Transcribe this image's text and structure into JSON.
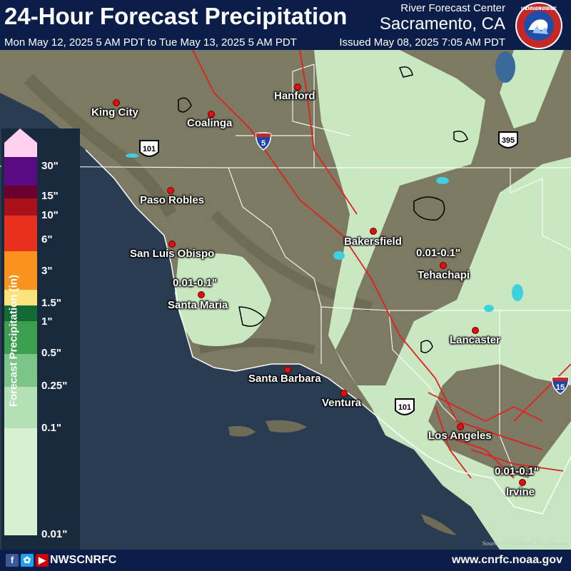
{
  "header": {
    "title": "24-Hour Forecast Precipitation",
    "valid_period": "Mon May 12, 2025 5 AM PDT to Tue May 13, 2025 5 AM PDT",
    "issued": "Issued May 08, 2025 7:05 AM PDT",
    "office_line1": "River Forecast Center",
    "office_line2": "Sacramento, CA",
    "logo_text": "NATIONAL WEATHER SERVICE"
  },
  "cities": [
    {
      "name": "Hanford"
    },
    {
      "name": "King City"
    },
    {
      "name": "Coalinga"
    },
    {
      "name": "Paso Robles"
    },
    {
      "name": "Bakersfield"
    },
    {
      "name": "San Luis Obispo"
    },
    {
      "name": "Tehachapi"
    },
    {
      "name": "Santa Maria"
    },
    {
      "name": "Lancaster"
    },
    {
      "name": "Santa Barbara"
    },
    {
      "name": "Ventura"
    },
    {
      "name": "Los Angeles"
    },
    {
      "name": "Irvine"
    }
  ],
  "highways": [
    {
      "number": "5",
      "type": "interstate"
    },
    {
      "number": "101",
      "type": "us"
    },
    {
      "number": "395",
      "type": "us"
    },
    {
      "number": "101",
      "type": "us"
    },
    {
      "number": "15",
      "type": "interstate"
    }
  ],
  "precip_annotations": [
    "0.01-0.1\"",
    "0.01-0.1\"",
    "0.01-0.1\""
  ],
  "legend": {
    "title": "Forecast Precipitation (in)",
    "labels": [
      "30\"",
      "15\"",
      "10\"",
      "6\"",
      "3\"",
      "1.5\"",
      "1\"",
      "0.5\"",
      "0.25\"",
      "0.1\"",
      "0.01\""
    ],
    "colors": {
      "top_arrow": "#ffd0f0",
      "level_30": "#5a0a82",
      "level_15": "#6b0030",
      "level_10": "#a8101a",
      "level_6": "#e8301e",
      "level_3": "#f7931e",
      "level_1_5": "#fde47a",
      "level_1": "#136b34",
      "level_0_5": "#3d9e4e",
      "level_0_25": "#7cc487",
      "level_0_1": "#b3e0b4",
      "level_0_01": "#d6f0d1"
    }
  },
  "map_colors": {
    "ocean": "#2a3c52",
    "land": "#7d7a63",
    "precip_light": "#cdeec6",
    "county_lines": "#ffffff",
    "roads": "#e02020",
    "lakes": "#3fd0e0"
  },
  "footer": {
    "social_handle": "NWSCNRFC",
    "website": "www.cnrfc.noaa.gov",
    "source_credit": "Source: US National Park Service"
  }
}
